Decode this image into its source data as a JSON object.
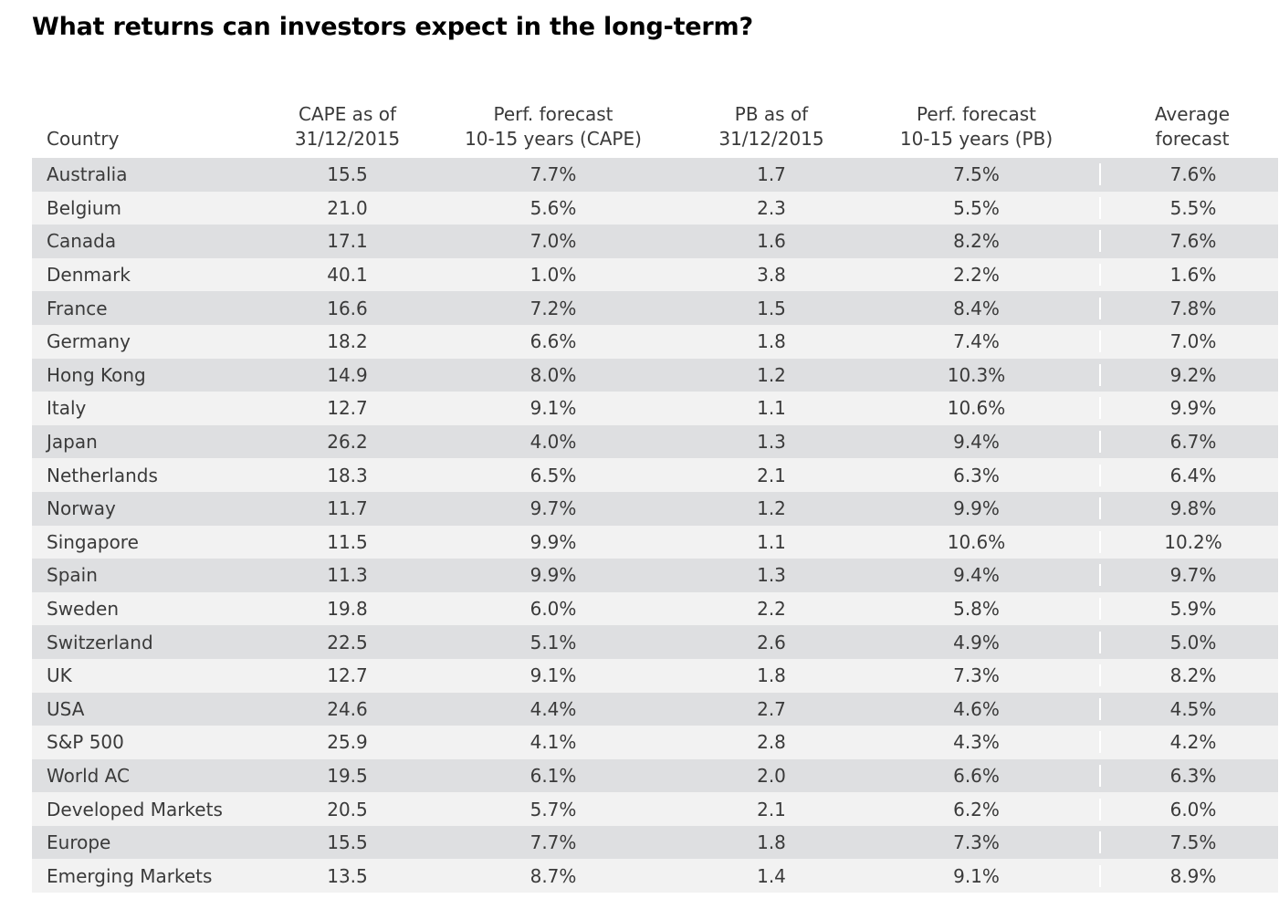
{
  "title": "What returns can investors expect in the long-term?",
  "columns": [
    {
      "line1": "",
      "line2": "Country"
    },
    {
      "line1": "CAPE as of",
      "line2": "31/12/2015"
    },
    {
      "line1": "Perf. forecast",
      "line2": "10-15 years (CAPE)"
    },
    {
      "line1": "PB as of",
      "line2": "31/12/2015"
    },
    {
      "line1": "Perf. forecast",
      "line2": "10-15 years (PB)"
    },
    {
      "line1": "Average",
      "line2": "forecast"
    }
  ],
  "rows": [
    [
      "Australia",
      "15.5",
      "7.7%",
      "1.7",
      "7.5%",
      "7.6%"
    ],
    [
      "Belgium",
      "21.0",
      "5.6%",
      "2.3",
      "5.5%",
      "5.5%"
    ],
    [
      "Canada",
      "17.1",
      "7.0%",
      "1.6",
      "8.2%",
      "7.6%"
    ],
    [
      "Denmark",
      "40.1",
      "1.0%",
      "3.8",
      "2.2%",
      "1.6%"
    ],
    [
      "France",
      "16.6",
      "7.2%",
      "1.5",
      "8.4%",
      "7.8%"
    ],
    [
      "Germany",
      "18.2",
      "6.6%",
      "1.8",
      "7.4%",
      "7.0%"
    ],
    [
      "Hong Kong",
      "14.9",
      "8.0%",
      "1.2",
      "10.3%",
      "9.2%"
    ],
    [
      "Italy",
      "12.7",
      "9.1%",
      "1.1",
      "10.6%",
      "9.9%"
    ],
    [
      "Japan",
      "26.2",
      "4.0%",
      "1.3",
      "9.4%",
      "6.7%"
    ],
    [
      "Netherlands",
      "18.3",
      "6.5%",
      "2.1",
      "6.3%",
      "6.4%"
    ],
    [
      "Norway",
      "11.7",
      "9.7%",
      "1.2",
      "9.9%",
      "9.8%"
    ],
    [
      "Singapore",
      "11.5",
      "9.9%",
      "1.1",
      "10.6%",
      "10.2%"
    ],
    [
      "Spain",
      "11.3",
      "9.9%",
      "1.3",
      "9.4%",
      "9.7%"
    ],
    [
      "Sweden",
      "19.8",
      "6.0%",
      "2.2",
      "5.8%",
      "5.9%"
    ],
    [
      "Switzerland",
      "22.5",
      "5.1%",
      "2.6",
      "4.9%",
      "5.0%"
    ],
    [
      "UK",
      "12.7",
      "9.1%",
      "1.8",
      "7.3%",
      "8.2%"
    ],
    [
      "USA",
      "24.6",
      "4.4%",
      "2.7",
      "4.6%",
      "4.5%"
    ],
    [
      "S&P 500",
      "25.9",
      "4.1%",
      "2.8",
      "4.3%",
      "4.2%"
    ],
    [
      "World AC",
      "19.5",
      "6.1%",
      "2.0",
      "6.6%",
      "6.3%"
    ],
    [
      "Developed Markets",
      "20.5",
      "5.7%",
      "2.1",
      "6.2%",
      "6.0%"
    ],
    [
      "Europe",
      "15.5",
      "7.7%",
      "1.8",
      "7.3%",
      "7.5%"
    ],
    [
      "Emerging Markets",
      "13.5",
      "8.7%",
      "1.4",
      "9.1%",
      "8.9%"
    ]
  ],
  "colors": {
    "shaded_row": "#dedfe1",
    "light_row": "#f2f2f2",
    "text": "#3a3a3a",
    "title": "#000000"
  }
}
